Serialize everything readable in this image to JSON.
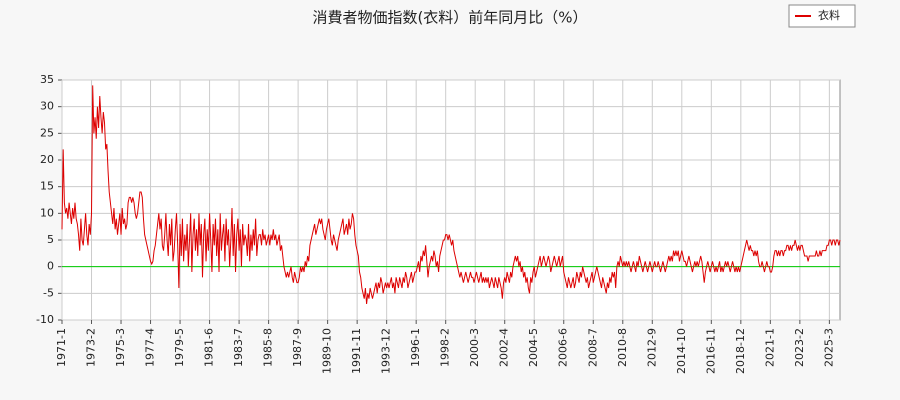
{
  "chart_data": {
    "type": "line",
    "title": "消費者物価指数(衣料）前年同月比（%）",
    "categories": [
      "1971-1",
      null,
      null,
      null,
      null,
      null,
      null,
      null,
      null,
      null,
      null,
      null,
      null,
      null,
      null,
      null,
      null,
      null,
      null,
      null,
      null,
      null,
      null,
      null,
      null,
      "1973-2",
      null,
      null,
      null,
      null,
      null,
      null,
      null,
      null,
      null,
      null,
      null,
      null,
      null,
      null,
      null,
      null,
      null,
      null,
      null,
      null,
      null,
      null,
      null,
      null,
      "1975-3",
      null,
      null,
      null,
      null,
      null,
      null,
      null,
      null,
      null,
      null,
      null,
      null,
      null,
      null,
      null,
      null,
      null,
      null,
      null,
      null,
      null,
      null,
      null,
      null,
      "1977-4",
      null,
      null,
      null,
      null,
      null,
      null,
      null,
      null,
      null,
      null,
      null,
      null,
      null,
      null,
      null,
      null,
      null,
      null,
      null,
      null,
      null,
      null,
      null,
      null,
      "1979-5",
      null,
      null,
      null,
      null,
      null,
      null,
      null,
      null,
      null,
      null,
      null,
      null,
      null,
      null,
      null,
      null,
      null,
      null,
      null,
      null,
      null,
      null,
      null,
      null,
      "1981-6",
      null,
      null,
      null,
      null,
      null,
      null,
      null,
      null,
      null,
      null,
      null,
      null,
      null,
      null,
      null,
      null,
      null,
      null,
      null,
      null,
      null,
      null,
      null,
      null,
      "1983-7",
      null,
      null,
      null,
      null,
      null,
      null,
      null,
      null,
      null,
      null,
      null,
      null,
      null,
      null,
      null,
      null,
      null,
      null,
      null,
      null,
      null,
      null,
      null,
      null,
      "1985-8",
      null,
      null,
      null,
      null,
      null,
      null,
      null,
      null,
      null,
      null,
      null,
      null,
      null,
      null,
      null,
      null,
      null,
      null,
      null,
      null,
      null,
      null,
      null,
      null,
      "1987-9",
      null,
      null,
      null,
      null,
      null,
      null,
      null,
      null,
      null,
      null,
      null,
      null,
      null,
      null,
      null,
      null,
      null,
      null,
      null,
      null,
      null,
      null,
      null,
      null,
      "1989-10",
      null,
      null,
      null,
      null,
      null,
      null,
      null,
      null,
      null,
      null,
      null,
      null,
      null,
      null,
      null,
      null,
      null,
      null,
      null,
      null,
      null,
      null,
      null,
      null,
      "1991-11",
      null,
      null,
      null,
      null,
      null,
      null,
      null,
      null,
      null,
      null,
      null,
      null,
      null,
      null,
      null,
      null,
      null,
      null,
      null,
      null,
      null,
      null,
      null,
      null,
      "1993-12",
      null,
      null,
      null,
      null,
      null,
      null,
      null,
      null,
      null,
      null,
      null,
      null,
      null,
      null,
      null,
      null,
      null,
      null,
      null,
      null,
      null,
      null,
      null,
      null,
      "1996-1",
      null,
      null,
      null,
      null,
      null,
      null,
      null,
      null,
      null,
      null,
      null,
      null,
      null,
      null,
      null,
      null,
      null,
      null,
      null,
      null,
      null,
      null,
      null,
      null,
      "1998-2",
      null,
      null,
      null,
      null,
      null,
      null,
      null,
      null,
      null,
      null,
      null,
      null,
      null,
      null,
      null,
      null,
      null,
      null,
      null,
      null,
      null,
      null,
      null,
      null,
      "2000-3",
      null,
      null,
      null,
      null,
      null,
      null,
      null,
      null,
      null,
      null,
      null,
      null,
      null,
      null,
      null,
      null,
      null,
      null,
      null,
      null,
      null,
      null,
      null,
      null,
      "2002-4",
      null,
      null,
      null,
      null,
      null,
      null,
      null,
      null,
      null,
      null,
      null,
      null,
      null,
      null,
      null,
      null,
      null,
      null,
      null,
      null,
      null,
      null,
      null,
      null,
      "2004-5",
      null,
      null,
      null,
      null,
      null,
      null,
      null,
      null,
      null,
      null,
      null,
      null,
      null,
      null,
      null,
      null,
      null,
      null,
      null,
      null,
      null,
      null,
      null,
      null,
      "2006-6",
      null,
      null,
      null,
      null,
      null,
      null,
      null,
      null,
      null,
      null,
      null,
      null,
      null,
      null,
      null,
      null,
      null,
      null,
      null,
      null,
      null,
      null,
      null,
      null,
      "2008-7",
      null,
      null,
      null,
      null,
      null,
      null,
      null,
      null,
      null,
      null,
      null,
      null,
      null,
      null,
      null,
      null,
      null,
      null,
      null,
      null,
      null,
      null,
      null,
      null,
      "2010-8",
      null,
      null,
      null,
      null,
      null,
      null,
      null,
      null,
      null,
      null,
      null,
      null,
      null,
      null,
      null,
      null,
      null,
      null,
      null,
      null,
      null,
      null,
      null,
      null,
      "2012-9",
      null,
      null,
      null,
      null,
      null,
      null,
      null,
      null,
      null,
      null,
      null,
      null,
      null,
      null,
      null,
      null,
      null,
      null,
      null,
      null,
      null,
      null,
      null,
      null,
      "2014-10",
      null,
      null,
      null,
      null,
      null,
      null,
      null,
      null,
      null,
      null,
      null,
      null,
      null,
      null,
      null,
      null,
      null,
      null,
      null,
      null,
      null,
      null,
      null,
      null,
      "2016-11",
      null,
      null,
      null,
      null,
      null,
      null,
      null,
      null,
      null,
      null,
      null,
      null,
      null,
      null,
      null,
      null,
      null,
      null,
      null,
      null,
      null,
      null,
      null,
      null,
      "2018-12",
      null,
      null,
      null,
      null,
      null,
      null,
      null,
      null,
      null,
      null,
      null,
      null,
      null,
      null,
      null,
      null,
      null,
      null,
      null,
      null,
      null,
      null,
      null,
      null,
      "2021-1",
      null,
      null,
      null,
      null,
      null,
      null,
      null,
      null,
      null,
      null,
      null,
      null,
      null,
      null,
      null,
      null,
      null,
      null,
      null,
      null,
      null,
      null,
      null,
      null,
      "2023-2",
      null,
      null,
      null,
      null,
      null,
      null,
      null,
      null,
      null,
      null,
      null,
      null,
      null,
      null,
      null,
      null,
      null,
      null,
      null,
      null,
      null,
      null,
      null,
      null,
      "2025-3",
      null,
      null,
      null,
      null,
      null,
      null,
      null,
      null,
      null
    ],
    "series": [
      {
        "name": "衣料",
        "color": "#dd0000",
        "values": [
          7,
          22,
          12,
          10,
          11,
          9,
          12,
          10,
          8,
          11,
          9,
          12,
          9,
          8,
          6,
          3,
          9,
          5,
          4,
          7,
          10,
          6,
          4,
          8,
          6,
          10,
          34,
          25,
          28,
          24,
          30,
          26,
          32,
          28,
          25,
          29,
          27,
          22,
          23,
          18,
          14,
          12,
          10,
          8,
          11,
          7,
          9,
          6,
          8,
          10,
          6,
          11,
          8,
          9,
          7,
          8,
          12,
          13,
          13,
          12,
          13,
          12,
          10,
          9,
          10,
          12,
          14,
          14,
          13,
          9,
          6,
          5,
          4,
          3,
          2,
          1,
          0.5,
          1,
          3,
          4,
          6,
          8,
          10,
          7,
          9,
          4,
          3,
          6,
          10,
          5,
          2,
          8,
          4,
          9,
          1,
          3,
          7,
          10,
          4,
          -4,
          8,
          2,
          9,
          1,
          6,
          3,
          8,
          0,
          5,
          10,
          -1,
          6,
          9,
          3,
          7,
          2,
          10,
          4,
          8,
          -2,
          6,
          9,
          1,
          7,
          3,
          10,
          5,
          -1,
          8,
          4,
          9,
          2,
          7,
          -1,
          10,
          3,
          6,
          8,
          1,
          9,
          4,
          7,
          0,
          5,
          11,
          2,
          8,
          -1,
          6,
          9,
          3,
          7,
          0,
          8,
          4,
          6,
          5,
          2,
          8,
          1,
          6,
          3,
          7,
          4,
          9,
          2,
          5,
          6,
          6,
          4,
          7,
          5,
          6,
          4,
          5,
          6,
          4,
          6,
          5,
          7,
          5,
          6,
          4,
          5,
          6,
          3,
          4,
          2,
          0,
          -1,
          -2,
          -1,
          -2,
          -1,
          0,
          -2,
          -3,
          -1,
          -2,
          -3,
          -3,
          -2,
          0,
          -1,
          0,
          -1,
          1,
          0,
          2,
          1,
          4,
          5,
          6,
          7,
          8,
          6,
          7,
          8,
          9,
          8,
          9,
          7,
          6,
          5,
          7,
          8,
          9,
          7,
          5,
          4,
          6,
          5,
          4,
          3,
          5,
          6,
          7,
          8,
          9,
          6,
          7,
          8,
          6,
          9,
          7,
          8,
          10,
          9,
          6,
          4,
          3,
          2,
          -1,
          -2,
          -4,
          -5,
          -6,
          -4,
          -7,
          -5,
          -6,
          -4,
          -5,
          -6,
          -5,
          -4,
          -3,
          -5,
          -3,
          -4,
          -2,
          -3,
          -5,
          -4,
          -3,
          -4,
          -3,
          -4,
          -3,
          -2,
          -4,
          -3,
          -5,
          -2,
          -3,
          -4,
          -2,
          -3,
          -4,
          -2,
          -3,
          -1,
          -2,
          -4,
          -3,
          -2,
          -1,
          -3,
          -2,
          -1,
          -1,
          0,
          1,
          -1,
          2,
          1,
          3,
          2,
          4,
          1,
          -2,
          0,
          1,
          2,
          1,
          3,
          2,
          0,
          1,
          -1,
          2,
          3,
          4,
          5,
          5,
          6,
          6,
          5,
          6,
          5,
          4,
          5,
          3,
          2,
          1,
          0,
          -1,
          -2,
          -1,
          -2,
          -3,
          -2,
          -1,
          -2,
          -3,
          -2,
          -1,
          -2,
          -2,
          -3,
          -2,
          -1,
          -2,
          -3,
          -2,
          -1,
          -3,
          -2,
          -3,
          -2,
          -3,
          -2,
          -4,
          -3,
          -2,
          -3,
          -4,
          -2,
          -3,
          -4,
          -2,
          -3,
          -4,
          -6,
          -3,
          -2,
          -3,
          -1,
          -2,
          -3,
          -1,
          -2,
          0,
          1,
          2,
          1,
          2,
          0,
          1,
          -1,
          0,
          -2,
          -1,
          -3,
          -2,
          -4,
          -5,
          -2,
          -3,
          -1,
          0,
          -2,
          -1,
          0,
          1,
          2,
          0,
          1,
          2,
          1,
          0,
          1,
          2,
          1,
          -1,
          0,
          1,
          2,
          1,
          0,
          1,
          2,
          0,
          1,
          2,
          -1,
          -2,
          -3,
          -4,
          -2,
          -3,
          -4,
          -3,
          -2,
          -4,
          -3,
          -1,
          -2,
          -3,
          -1,
          -2,
          0,
          -1,
          -2,
          -3,
          -2,
          -4,
          -3,
          -2,
          -1,
          -3,
          -2,
          -1,
          0,
          -1,
          -2,
          -3,
          -4,
          -2,
          -3,
          -4,
          -5,
          -3,
          -4,
          -2,
          -3,
          -1,
          -2,
          -1,
          -4,
          0,
          1,
          0,
          2,
          1,
          0,
          1,
          0,
          1,
          0,
          1,
          0,
          -1,
          0,
          1,
          0,
          -1,
          1,
          0,
          2,
          1,
          0,
          -1,
          0,
          1,
          0,
          -1,
          0,
          1,
          0,
          -1,
          0,
          1,
          0,
          0,
          1,
          0,
          -1,
          0,
          1,
          0,
          -1,
          0,
          1,
          2,
          1,
          2,
          1,
          3,
          2,
          3,
          2,
          3,
          1,
          2,
          3,
          2,
          1,
          1,
          0,
          1,
          2,
          1,
          0,
          -1,
          0,
          1,
          0,
          1,
          0,
          1,
          2,
          1,
          -1,
          -3,
          -1,
          0,
          1,
          0,
          -1,
          0,
          1,
          0,
          -1,
          0,
          -1,
          0,
          1,
          -1,
          0,
          -1,
          0,
          1,
          0,
          1,
          0,
          -1,
          0,
          1,
          0,
          -1,
          0,
          -1,
          0,
          -1,
          0,
          1,
          2,
          3,
          4,
          5,
          4,
          3,
          4,
          3,
          3,
          2,
          3,
          2,
          3,
          1,
          0,
          0,
          1,
          0,
          -1,
          0,
          1,
          0,
          0,
          -1,
          -1,
          0,
          2,
          3,
          3,
          2,
          3,
          2,
          3,
          3,
          2,
          3,
          3,
          4,
          4,
          3,
          4,
          3,
          4,
          4,
          5,
          4,
          3,
          4,
          3,
          4,
          4,
          3,
          2,
          2,
          2,
          1,
          2,
          2,
          2,
          2,
          2,
          2,
          3,
          2,
          2,
          3,
          2,
          3,
          3,
          3,
          3,
          4,
          4,
          5,
          5,
          4,
          5,
          5,
          4,
          5,
          5,
          4,
          5
        ]
      }
    ],
    "ylim": [
      -10,
      35
    ],
    "yticks": [
      -10,
      -5,
      0,
      5,
      10,
      15,
      20,
      25,
      30,
      35
    ],
    "grid": true,
    "legend": "top-right",
    "reference_line": {
      "value": 0,
      "color": "#00cc00"
    }
  }
}
